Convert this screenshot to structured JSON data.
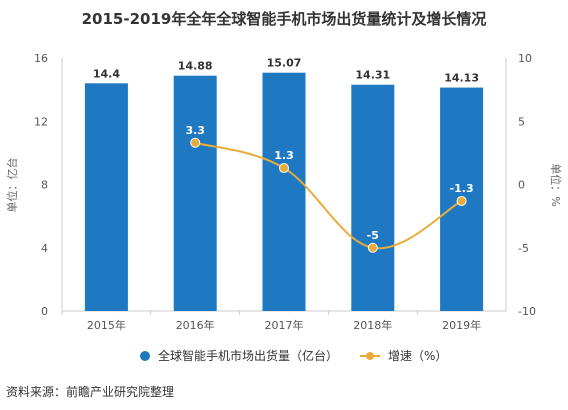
{
  "chart_data": {
    "type": "bar+line",
    "title": "2015-2019年全年全球智能手机市场出货量统计及增长情况",
    "categories": [
      "2015年",
      "2016年",
      "2017年",
      "2018年",
      "2019年"
    ],
    "series": [
      {
        "name": "全球智能手机市场出货量（亿台）",
        "type": "bar",
        "axis": "left",
        "color": "#1e78c2",
        "values": [
          14.4,
          14.88,
          15.07,
          14.31,
          14.13
        ],
        "labels": [
          "14.4",
          "14.88",
          "15.07",
          "14.31",
          "14.13"
        ]
      },
      {
        "name": "增速（%）",
        "type": "line",
        "axis": "right",
        "color": "#e8ac3c",
        "values": [
          null,
          3.3,
          1.3,
          -5,
          -1.3
        ],
        "labels": [
          "",
          "3.3",
          "1.3",
          "-5",
          "-1.3"
        ]
      }
    ],
    "y_left": {
      "label": "单位：亿台",
      "range": [
        0,
        16
      ],
      "ticks": [
        "0",
        "4",
        "8",
        "12",
        "16"
      ]
    },
    "y_right": {
      "label": "单位：%",
      "range": [
        -10,
        10
      ],
      "ticks": [
        "-10",
        "-5",
        "0",
        "5",
        "10"
      ]
    },
    "grid": false,
    "legend": "bottom"
  },
  "source": "资料来源：前瞻产业研究院整理"
}
